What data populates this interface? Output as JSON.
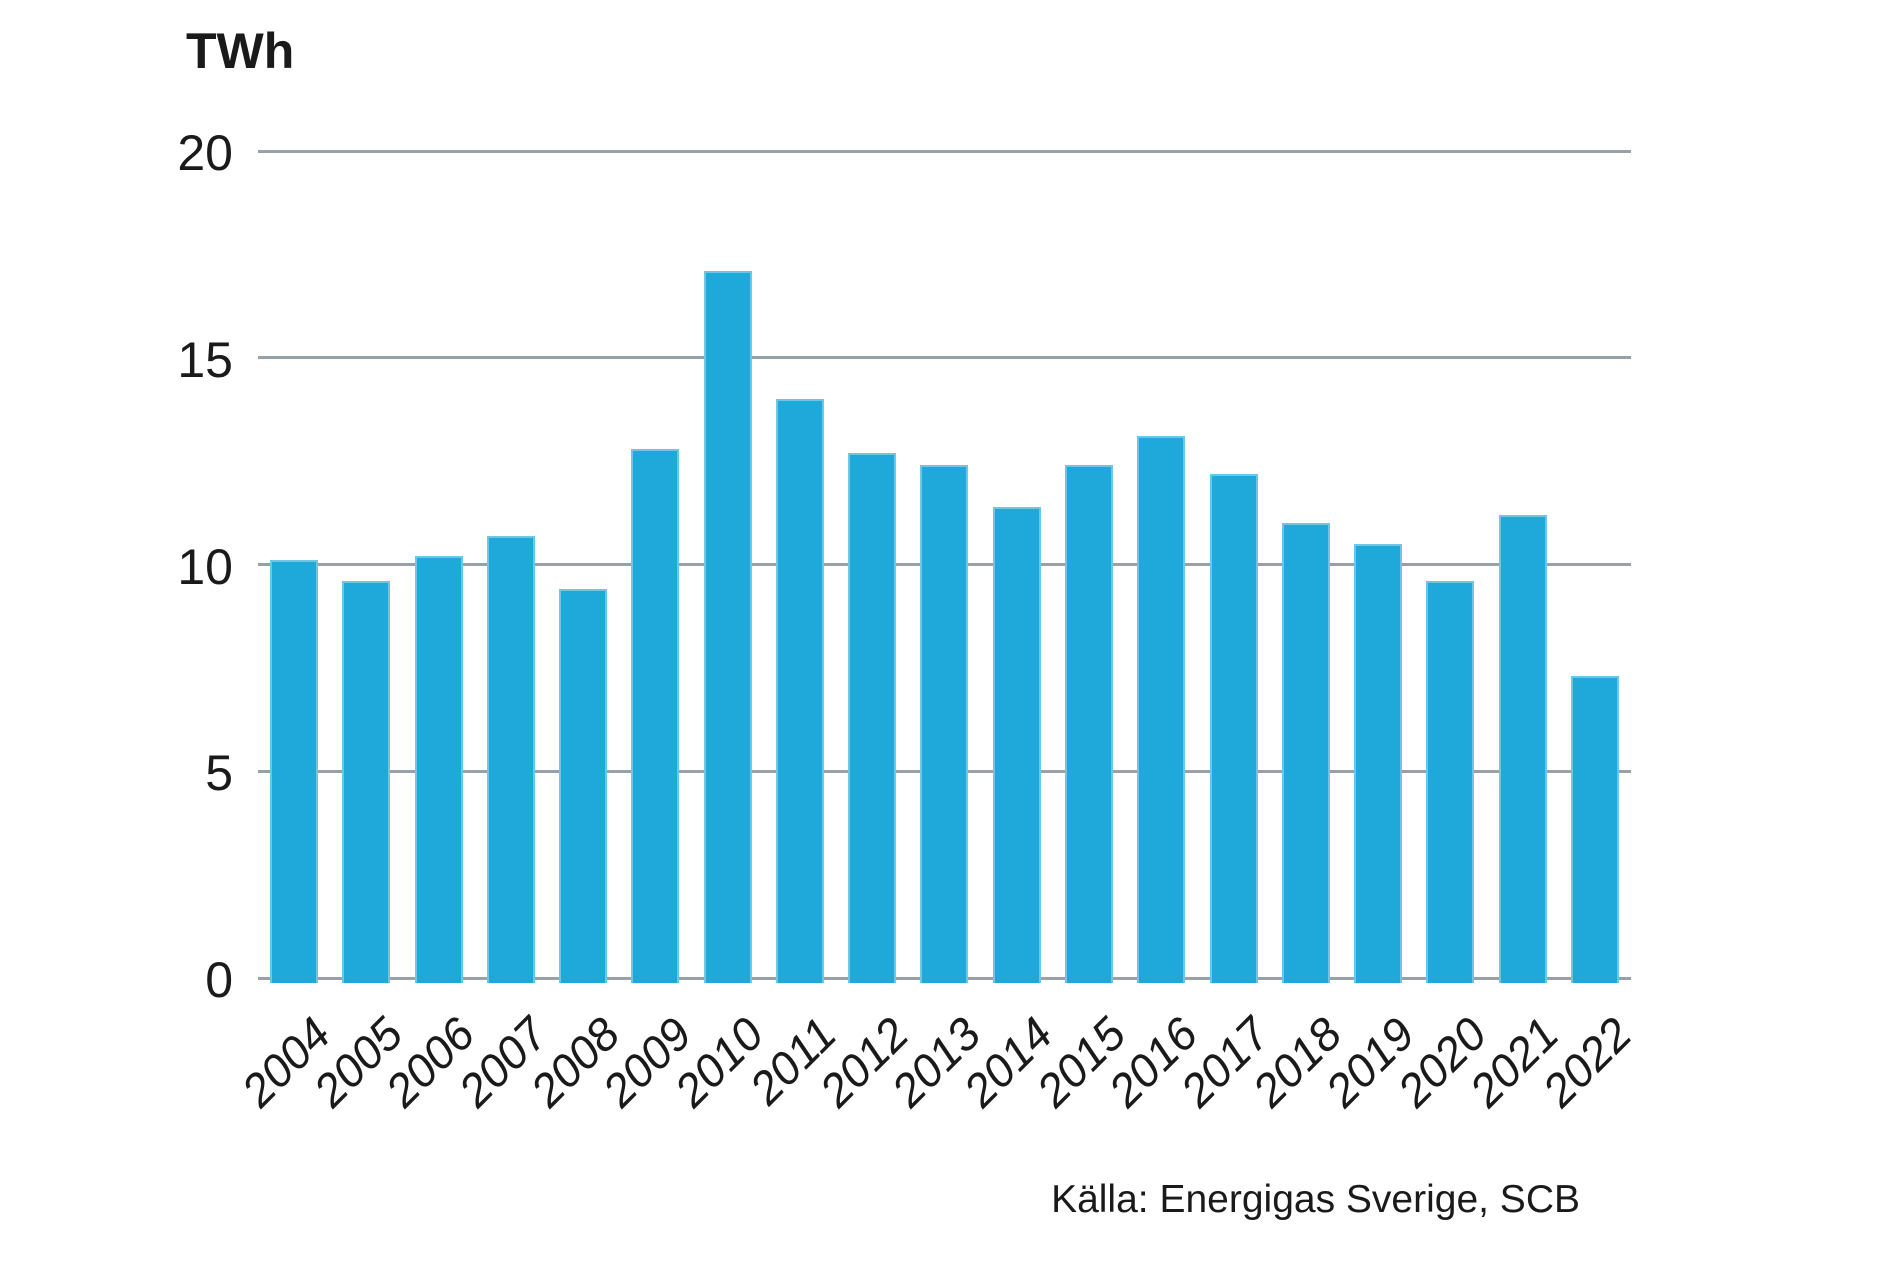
{
  "title": {
    "text": "TWh"
  },
  "source": {
    "text": "Källa: Energigas Sverige, SCB"
  },
  "colors": {
    "bar": "#1ea9da",
    "gridline": "#98a0a8",
    "text": "#1a1a1a",
    "background": "#ffffff"
  },
  "chart_data": {
    "type": "bar",
    "title": "TWh",
    "ylabel": "TWh",
    "xlabel": "",
    "ylim": [
      0,
      20
    ],
    "yticks": [
      0,
      5,
      10,
      15,
      20
    ],
    "grid": true,
    "legend": "none",
    "source": "Källa: Energigas Sverige, SCB",
    "categories": [
      "2004",
      "2005",
      "2006",
      "2007",
      "2008",
      "2009",
      "2010",
      "2011",
      "2012",
      "2013",
      "2014",
      "2015",
      "2016",
      "2017",
      "2018",
      "2019",
      "2020",
      "2021",
      "2022"
    ],
    "values": [
      10.1,
      9.6,
      10.2,
      10.7,
      9.4,
      12.8,
      17.1,
      14.0,
      12.7,
      12.4,
      11.4,
      12.4,
      13.1,
      12.2,
      11.0,
      10.5,
      9.6,
      11.2,
      7.3
    ]
  }
}
